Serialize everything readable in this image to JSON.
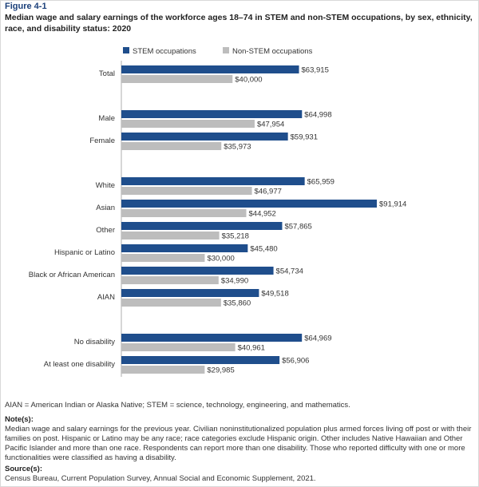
{
  "figure": {
    "label": "Figure 4-1",
    "title": "Median wage and salary earnings of the workforce ages 18–74 in STEM and non-STEM occupations, by sex, ethnicity, race, and disability status: 2020"
  },
  "chart_data": {
    "type": "bar",
    "orientation": "horizontal",
    "categories": [
      "Total",
      "Male",
      "Female",
      "White",
      "Asian",
      "Other",
      "Hispanic or Latino",
      "Black or African American",
      "AIAN",
      "No disability",
      "At least one disability"
    ],
    "groups": [
      {
        "categories": [
          "Total"
        ]
      },
      {
        "categories": [
          "Male",
          "Female"
        ]
      },
      {
        "categories": [
          "White",
          "Asian",
          "Other",
          "Hispanic or Latino",
          "Black or African American",
          "AIAN"
        ]
      },
      {
        "categories": [
          "No disability",
          "At least one disability"
        ]
      }
    ],
    "series": [
      {
        "name": "STEM occupations",
        "color": "#1f4e8c",
        "values": [
          63915,
          64998,
          59931,
          65959,
          91914,
          57865,
          45480,
          54734,
          49518,
          64969,
          56906
        ]
      },
      {
        "name": "Non-STEM occupations",
        "color": "#bdbdbd",
        "values": [
          40000,
          47954,
          35973,
          46977,
          44952,
          35218,
          30000,
          34990,
          35860,
          40961,
          29985
        ]
      }
    ],
    "data_labels": [
      [
        "$63,915",
        "$64,998",
        "$59,931",
        "$65,959",
        "$91,914",
        "$57,865",
        "$45,480",
        "$54,734",
        "$49,518",
        "$64,969",
        "$56,906"
      ],
      [
        "$40,000",
        "$47,954",
        "$35,973",
        "$46,977",
        "$44,952",
        "$35,218",
        "$30,000",
        "$34,990",
        "$35,860",
        "$40,961",
        "$29,985"
      ]
    ],
    "xlim": [
      0,
      100000
    ],
    "legend_position": "top",
    "grid": false
  },
  "abbreviations": "AIAN = American Indian or Alaska Native; STEM = science, technology, engineering, and mathematics.",
  "note": {
    "heading": "Note(s):",
    "text": "Median wage and salary earnings for the previous year. Civilian noninstitutionalized population plus armed forces living off post or with their families on post. Hispanic or Latino may be any race; race categories exclude Hispanic origin. Other includes Native Hawaiian and Other Pacific Islander and more than one race. Respondents can report more than one disability. Those who reported difficulty with one or more functionalities were classified as having a disability."
  },
  "source": {
    "heading": "Source(s):",
    "text": "Census Bureau, Current Population Survey, Annual Social and Economic Supplement, 2021."
  }
}
